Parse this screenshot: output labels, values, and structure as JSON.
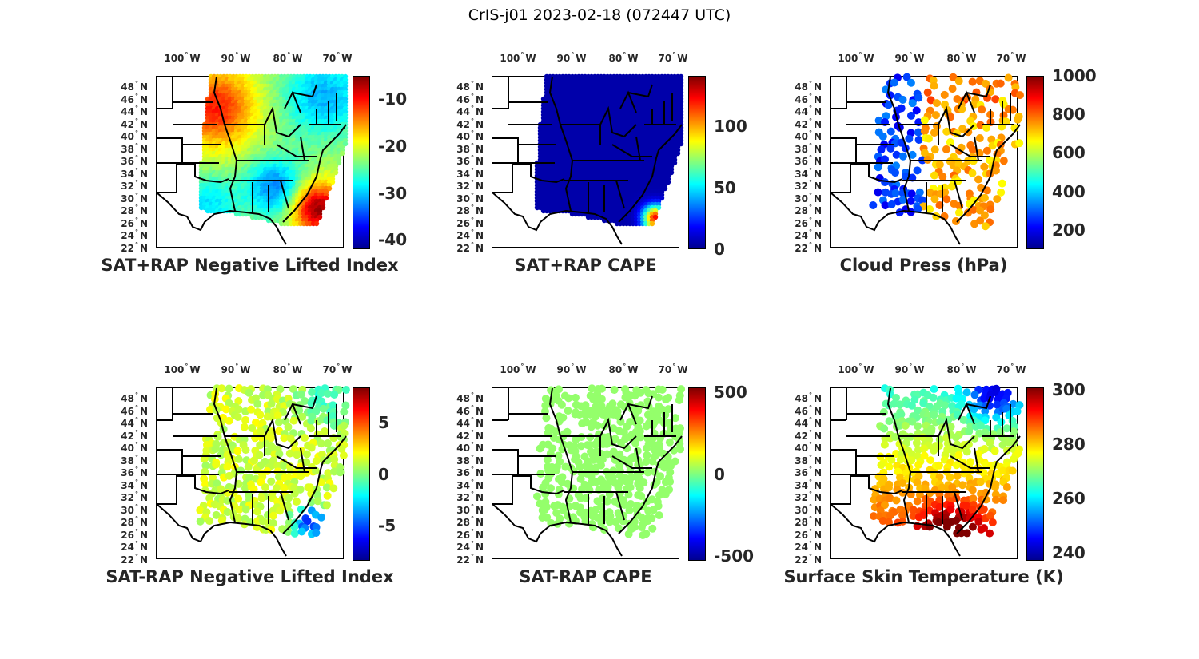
{
  "figure_title": "CrIS-j01 2023-02-18 (072447 UTC)",
  "chart_data": [
    {
      "type": "heatmap",
      "title": "SAT+RAP Negative Lifted Index",
      "colormap": "jet",
      "clim": [
        -42,
        -5
      ],
      "colorbar_ticks": [
        "-10",
        "-20",
        "-30",
        "-40"
      ],
      "colorbar_tick_values": [
        -10,
        -20,
        -30,
        -40
      ],
      "lon_ticks": [
        "100",
        "90",
        "80",
        "70"
      ],
      "lat_ticks": [
        "48",
        "46",
        "44",
        "42",
        "40",
        "38",
        "36",
        "34",
        "32",
        "30",
        "28",
        "26",
        "24",
        "22"
      ]
    },
    {
      "type": "heatmap",
      "title": "SAT+RAP CAPE",
      "colormap": "jet",
      "clim": [
        0,
        141
      ],
      "colorbar_ticks": [
        "100",
        "50",
        "0"
      ],
      "colorbar_tick_values": [
        100,
        50,
        0
      ],
      "lon_ticks": [
        "100",
        "90",
        "80",
        "70"
      ],
      "lat_ticks": [
        "48",
        "46",
        "44",
        "42",
        "40",
        "38",
        "36",
        "34",
        "32",
        "30",
        "28",
        "26",
        "24",
        "22"
      ]
    },
    {
      "type": "scatter",
      "title": "Cloud Press (hPa)",
      "colormap": "jet",
      "clim": [
        100,
        1000
      ],
      "colorbar_ticks": [
        "1000",
        "800",
        "600",
        "400",
        "200"
      ],
      "colorbar_tick_values": [
        1000,
        800,
        600,
        400,
        200
      ],
      "lon_ticks": [
        "100",
        "90",
        "80",
        "70"
      ],
      "lat_ticks": [
        "48",
        "46",
        "44",
        "42",
        "40",
        "38",
        "36",
        "34",
        "32",
        "30",
        "28",
        "26",
        "24",
        "22"
      ]
    },
    {
      "type": "scatter",
      "title": "SAT-RAP Negative Lifted Index",
      "colormap": "jet",
      "clim": [
        -8.4,
        8.4
      ],
      "colorbar_ticks": [
        "5",
        "0",
        "-5"
      ],
      "colorbar_tick_values": [
        5,
        0,
        -5
      ],
      "lon_ticks": [
        "100",
        "90",
        "80",
        "70"
      ],
      "lat_ticks": [
        "48",
        "46",
        "44",
        "42",
        "40",
        "38",
        "36",
        "34",
        "32",
        "30",
        "28",
        "26",
        "24",
        "22"
      ]
    },
    {
      "type": "scatter",
      "title": "SAT-RAP CAPE",
      "colormap": "jet",
      "clim": [
        -530,
        530
      ],
      "colorbar_ticks": [
        "500",
        "0",
        "-500"
      ],
      "colorbar_tick_values": [
        500,
        0,
        -500
      ],
      "lon_ticks": [
        "100",
        "90",
        "80",
        "70"
      ],
      "lat_ticks": [
        "48",
        "46",
        "44",
        "42",
        "40",
        "38",
        "36",
        "34",
        "32",
        "30",
        "28",
        "26",
        "24",
        "22"
      ]
    },
    {
      "type": "scatter",
      "title": "Surface Skin Temperature (K)",
      "colormap": "jet",
      "clim": [
        237,
        301
      ],
      "colorbar_ticks": [
        "300",
        "280",
        "260",
        "240"
      ],
      "colorbar_tick_values": [
        300,
        280,
        260,
        240
      ],
      "lon_ticks": [
        "100",
        "90",
        "80",
        "70"
      ],
      "lat_ticks": [
        "48",
        "46",
        "44",
        "42",
        "40",
        "38",
        "36",
        "34",
        "32",
        "30",
        "28",
        "26",
        "24",
        "22"
      ]
    }
  ],
  "lon_suffix": "W",
  "lat_suffix": "N",
  "degree_symbol": "°"
}
